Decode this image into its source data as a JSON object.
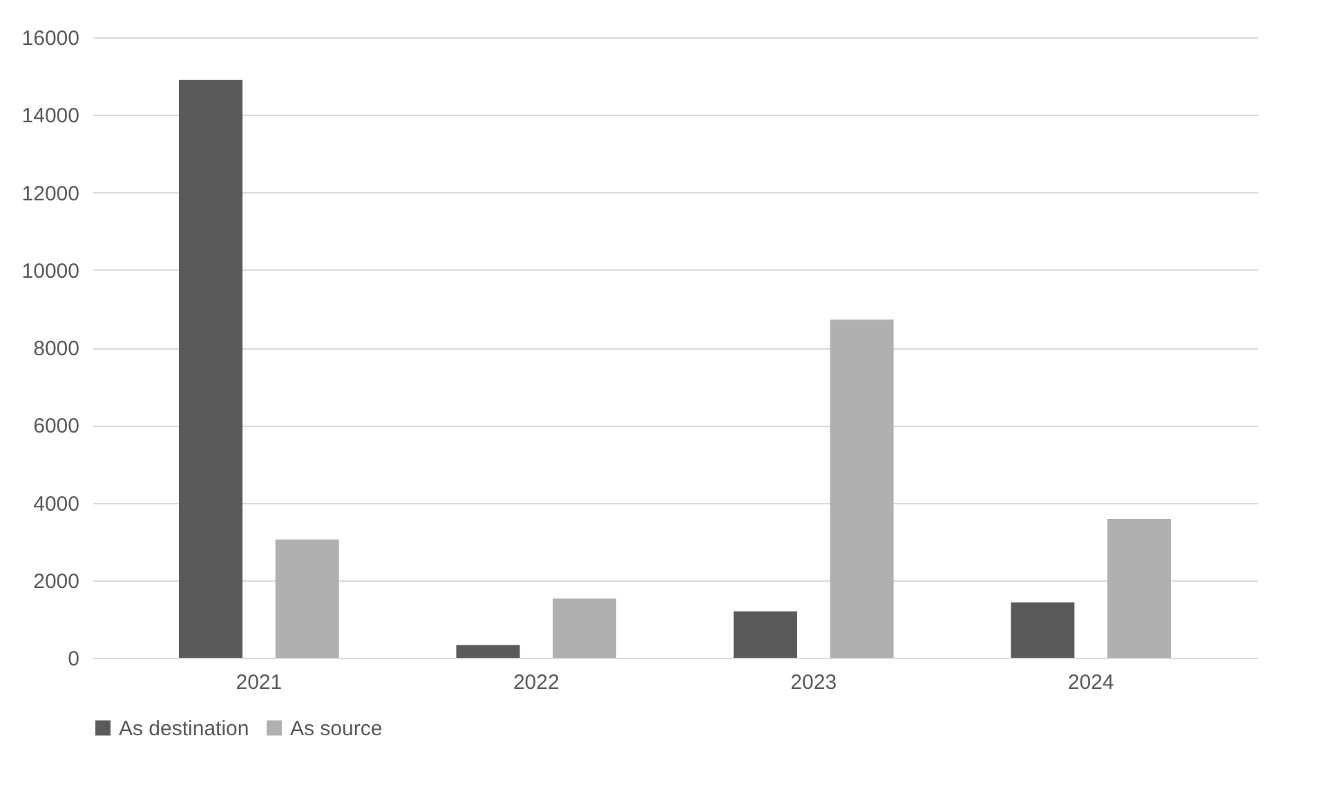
{
  "chart_data": {
    "type": "bar",
    "categories": [
      "2021",
      "2022",
      "2023",
      "2024"
    ],
    "series": [
      {
        "name": "As destination",
        "color": "#5a5a5a",
        "values": [
          14900,
          330,
          1200,
          1430
        ]
      },
      {
        "name": "As source",
        "color": "#b0b0b0",
        "values": [
          3050,
          1530,
          8720,
          3580
        ]
      }
    ],
    "ylim": [
      0,
      16000
    ],
    "yticks": [
      0,
      2000,
      4000,
      6000,
      8000,
      10000,
      12000,
      14000,
      16000
    ],
    "grid": "y",
    "legend": "bottom"
  }
}
